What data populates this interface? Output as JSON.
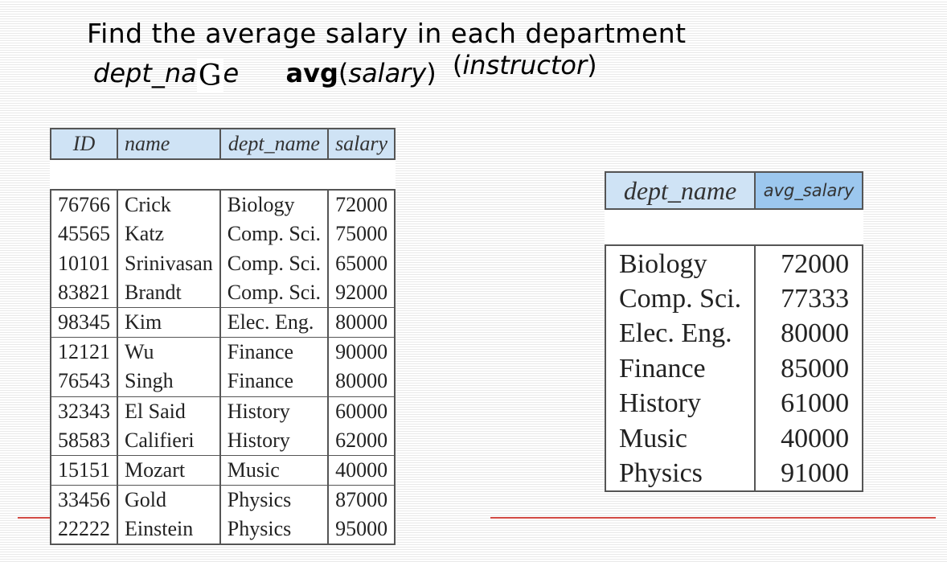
{
  "slide": {
    "title": "Find the average salary in each department",
    "formula": {
      "part1": "dept_na",
      "glyph": "G",
      "part2": "e",
      "func_name": "avg",
      "func_arg_open": "(",
      "func_arg": "salary",
      "func_arg_close": ")",
      "relation_open": "(",
      "relation": "instructor",
      "relation_close": ")"
    }
  },
  "instructor_table": {
    "columns": [
      "ID",
      "name",
      "dept_name",
      "salary"
    ],
    "rows": [
      {
        "id": "76766",
        "name": "Crick",
        "dept": "Biology",
        "salary": "72000"
      },
      {
        "id": "45565",
        "name": "Katz",
        "dept": "Comp. Sci.",
        "salary": "75000"
      },
      {
        "id": "10101",
        "name": "Srinivasan",
        "dept": "Comp. Sci.",
        "salary": "65000"
      },
      {
        "id": "83821",
        "name": "Brandt",
        "dept": "Comp. Sci.",
        "salary": "92000"
      },
      {
        "id": "98345",
        "name": "Kim",
        "dept": "Elec. Eng.",
        "salary": "80000"
      },
      {
        "id": "12121",
        "name": "Wu",
        "dept": "Finance",
        "salary": "90000"
      },
      {
        "id": "76543",
        "name": "Singh",
        "dept": "Finance",
        "salary": "80000"
      },
      {
        "id": "32343",
        "name": "El Said",
        "dept": "History",
        "salary": "60000"
      },
      {
        "id": "58583",
        "name": "Califieri",
        "dept": "History",
        "salary": "62000"
      },
      {
        "id": "15151",
        "name": "Mozart",
        "dept": "Music",
        "salary": "40000"
      },
      {
        "id": "33456",
        "name": "Gold",
        "dept": "Physics",
        "salary": "87000"
      },
      {
        "id": "22222",
        "name": "Einstein",
        "dept": "Physics",
        "salary": "95000"
      }
    ]
  },
  "result_table": {
    "columns": [
      "dept_name",
      "avg_salary"
    ],
    "rows": [
      {
        "dept": "Biology",
        "avg": "72000"
      },
      {
        "dept": "Comp. Sci.",
        "avg": "77333"
      },
      {
        "dept": "Elec. Eng.",
        "avg": "80000"
      },
      {
        "dept": "Finance",
        "avg": "85000"
      },
      {
        "dept": "History",
        "avg": "61000"
      },
      {
        "dept": "Music",
        "avg": "40000"
      },
      {
        "dept": "Physics",
        "avg": "91000"
      }
    ]
  },
  "colors": {
    "header_fill": "#cfe3f5",
    "highlight_fill": "#9cc7ee",
    "accent_line": "#d24a44",
    "stripe": "#e9e9e9"
  }
}
